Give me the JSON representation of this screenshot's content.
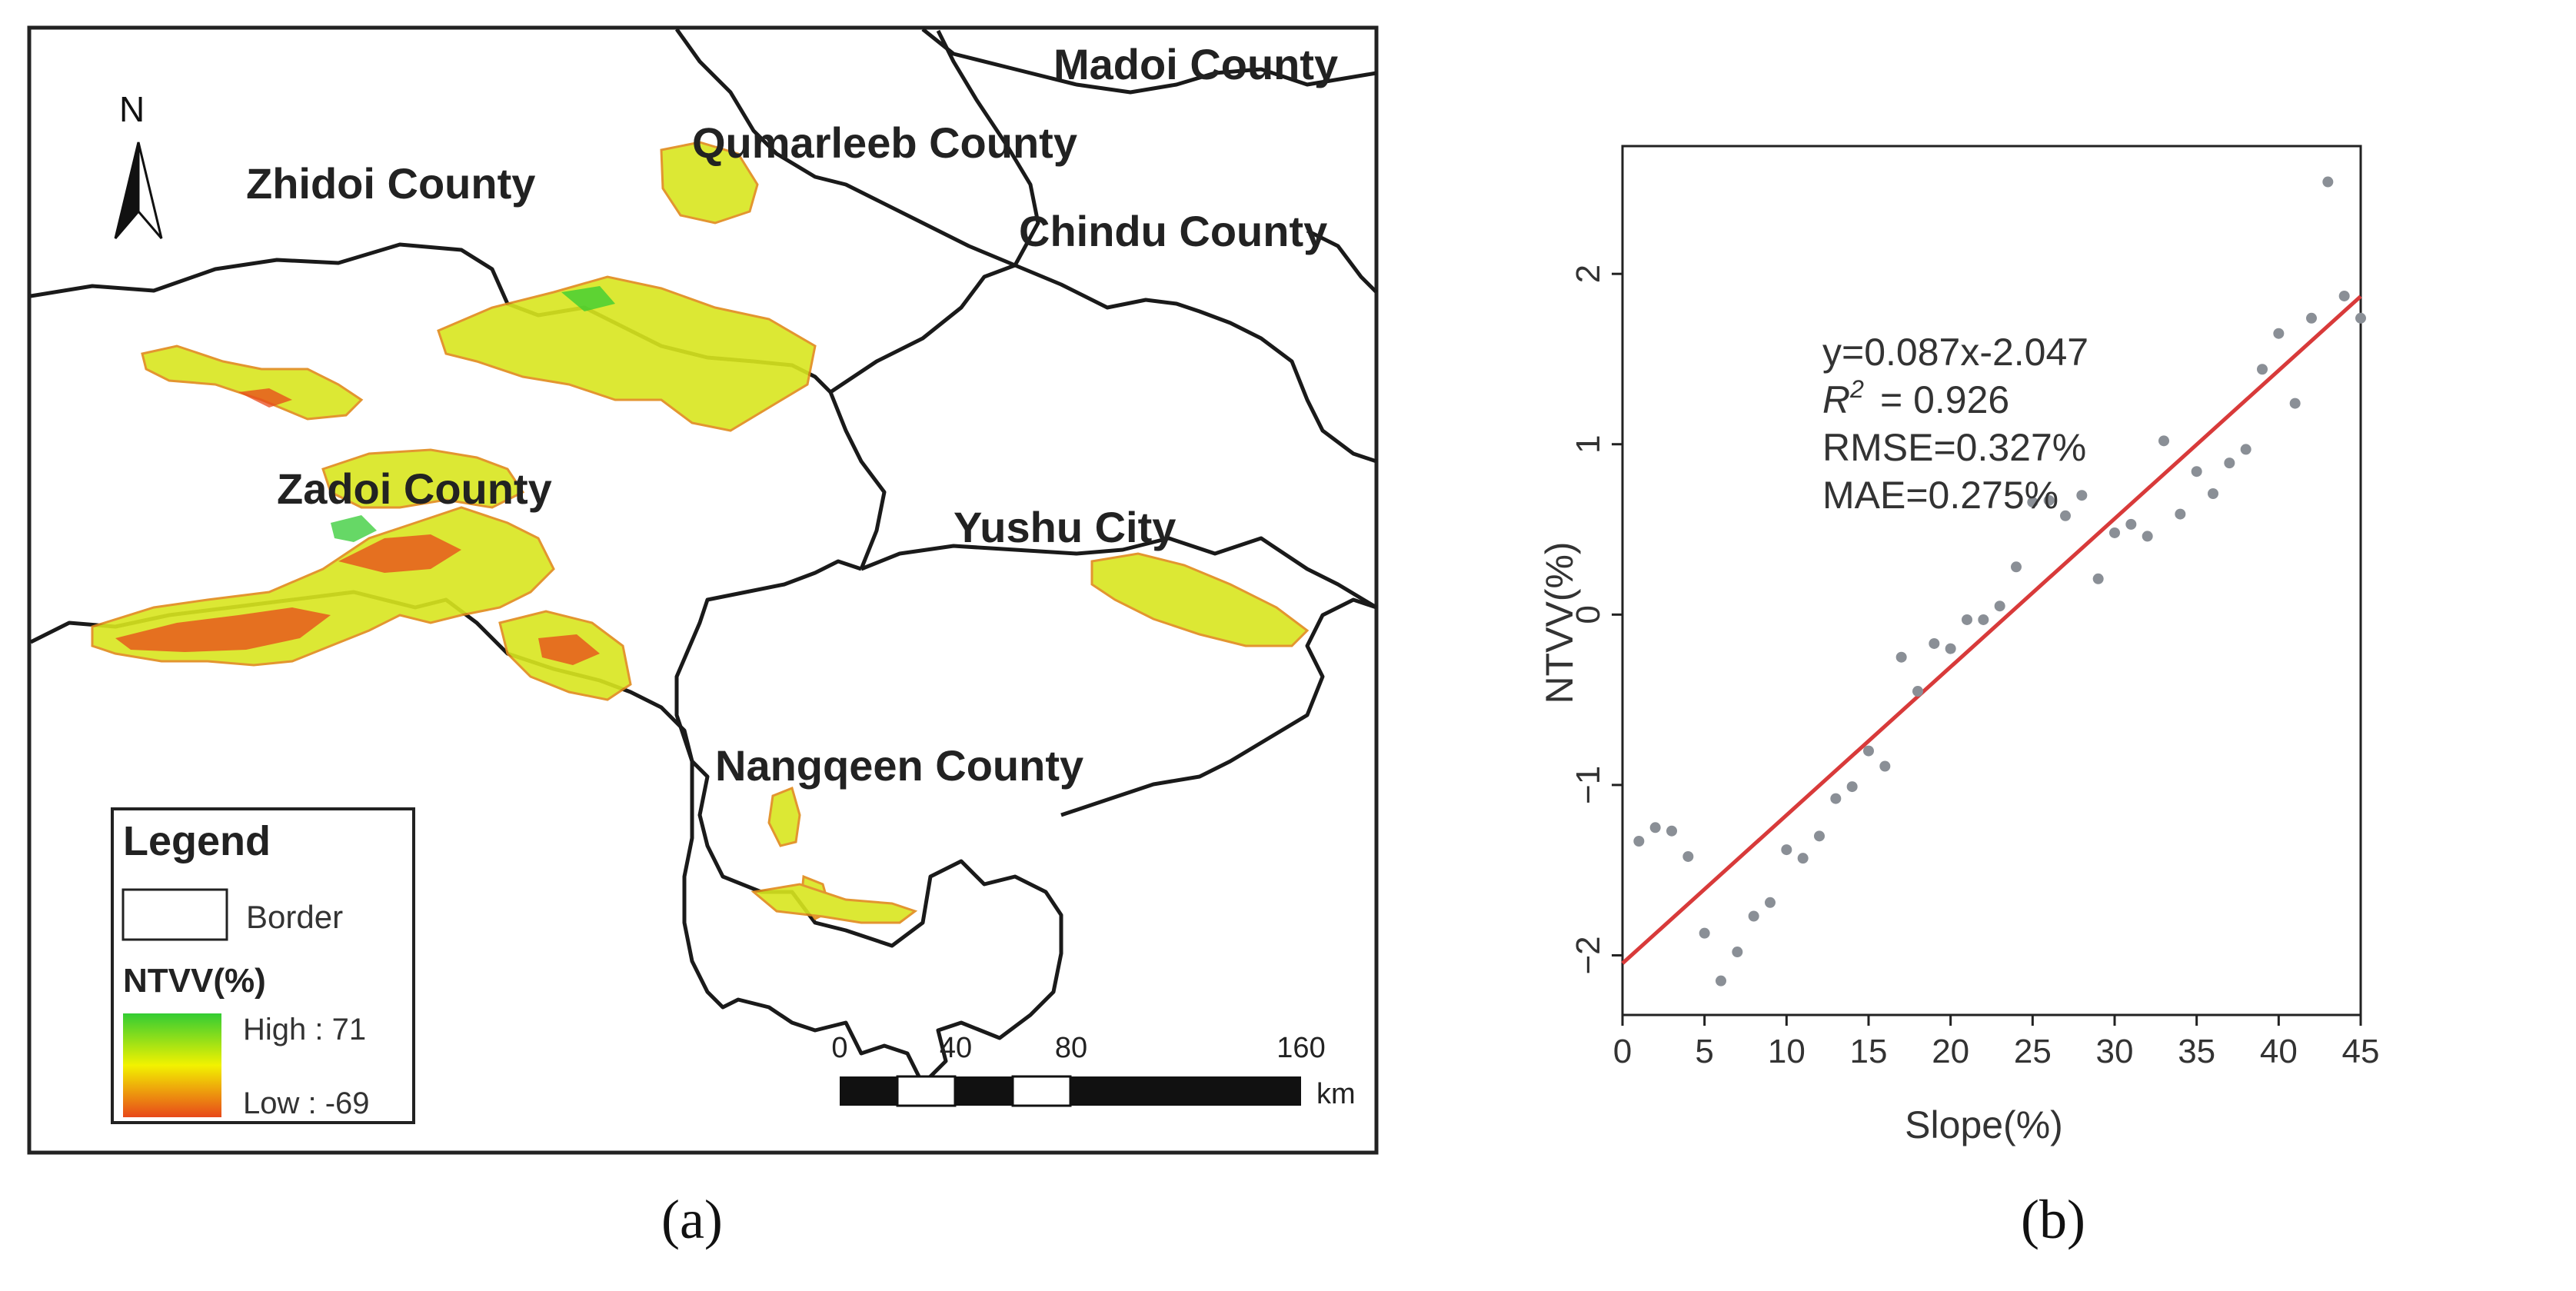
{
  "panels": {
    "a": "(a)",
    "b": "(b)"
  },
  "map": {
    "north_label": "N",
    "counties": [
      "Madoi County",
      "Qumarleeb County",
      "Zhidoi County",
      "Chindu County",
      "Zadoi County",
      "Yushu City",
      "Nangqeen County"
    ],
    "legend": {
      "title": "Legend",
      "border_label": "Border",
      "variable": "NTVV(%)",
      "high_label": "High : 71",
      "low_label": "Low : -69",
      "high_color": "#33cc33",
      "mid_color": "#f2f200",
      "low_color": "#e8481a"
    },
    "scale": {
      "ticks": [
        "0",
        "40",
        "80",
        "160"
      ],
      "unit": "km"
    },
    "colors": {
      "border": "#1a1a1a",
      "patch": "#d9e61f",
      "patch_edge": "#e08a1a"
    }
  },
  "chart_data": {
    "type": "scatter",
    "xlabel": "Slope(%)",
    "ylabel": "NTVV(%)",
    "xlim": [
      0,
      45
    ],
    "ylim": [
      -2.35,
      2.75
    ],
    "xticks": [
      0,
      5,
      10,
      15,
      20,
      25,
      30,
      35,
      40,
      45
    ],
    "yticks": [
      -2,
      -1,
      0,
      1,
      2
    ],
    "fit": {
      "slope": 0.087,
      "intercept": -2.047,
      "color": "#d83a3a"
    },
    "annotation": {
      "equation": "y=0.087x-2.047",
      "r2": "= 0.926",
      "rmse": "RMSE=0.327%",
      "mae": "MAE=0.275%"
    },
    "point_color": "#8a8f96",
    "series": [
      {
        "x": [
          1,
          2,
          3,
          4,
          5,
          6,
          7,
          8,
          9,
          10,
          11,
          12,
          13,
          14,
          15,
          16,
          17,
          18,
          19,
          20,
          21,
          22,
          23,
          24,
          25,
          26,
          27,
          28,
          29,
          30,
          31,
          32,
          33,
          34,
          35,
          36,
          37,
          38,
          39,
          40,
          41,
          42,
          43,
          44,
          45
        ],
        "y": [
          -1.33,
          -1.25,
          -1.27,
          -1.42,
          -1.87,
          -2.15,
          -1.98,
          -1.77,
          -1.69,
          -1.38,
          -1.43,
          -1.3,
          -1.08,
          -1.01,
          -0.8,
          -0.89,
          -0.25,
          -0.45,
          -0.17,
          -0.2,
          -0.03,
          -0.03,
          0.05,
          0.28,
          0.66,
          0.67,
          0.58,
          0.7,
          0.21,
          0.48,
          0.53,
          0.46,
          1.02,
          0.59,
          0.84,
          0.71,
          0.89,
          0.97,
          1.44,
          1.65,
          1.24,
          1.74,
          2.54,
          1.87,
          1.74
        ]
      }
    ]
  }
}
